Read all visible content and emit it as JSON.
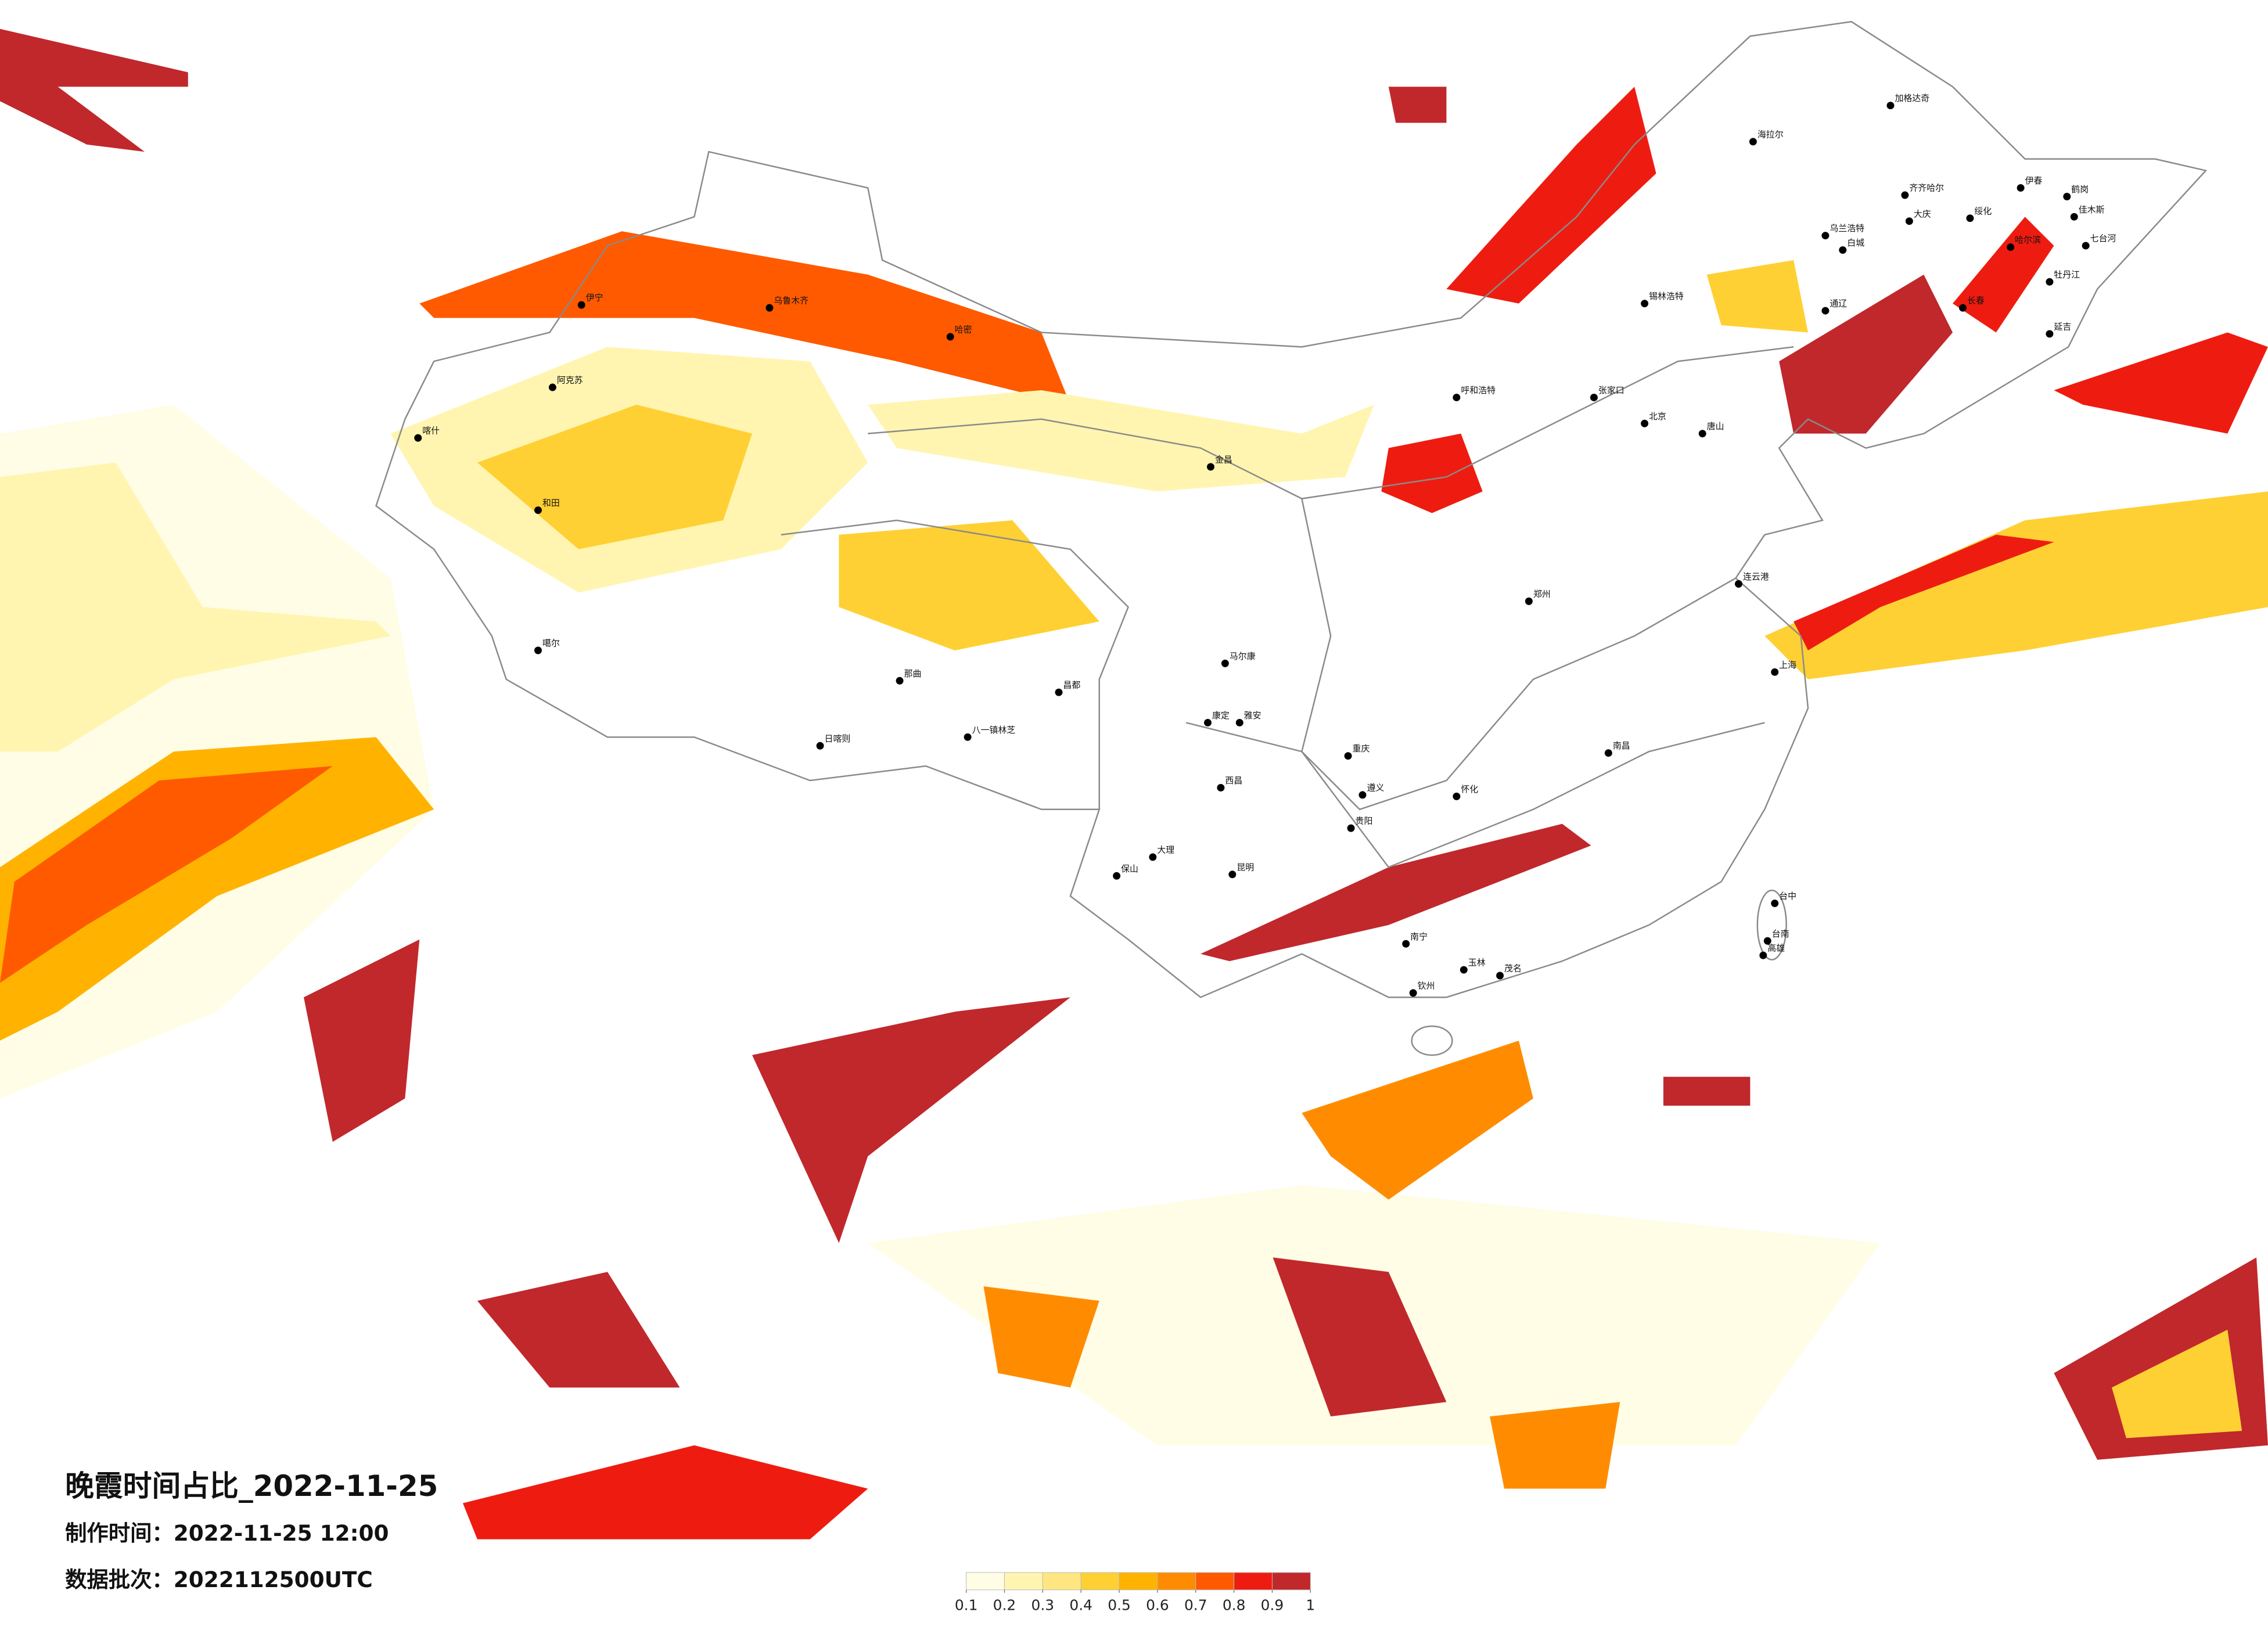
{
  "title": "晚霞时间占比_2022-11-25",
  "production_time": {
    "label": "制作时间：",
    "value": "2022-11-25 12:00"
  },
  "data_batch": {
    "label": "数据批次：",
    "value": "2022112500UTC"
  },
  "legend": {
    "colors": [
      "#fffde6",
      "#fff5b0",
      "#ffe680",
      "#ffd033",
      "#ffb300",
      "#ff8c00",
      "#ff5a00",
      "#ee1c10",
      "#c0282c"
    ],
    "ticks": [
      0.1,
      0.2,
      0.3,
      0.4,
      0.5,
      0.6,
      0.7,
      0.8,
      0.9,
      1
    ]
  },
  "cities": [
    "哈密",
    "乌鲁木齐",
    "伊宁",
    "阿克苏",
    "喀什",
    "和田",
    "噶尔",
    "那曲",
    "日喀则",
    "八一镇林芝",
    "昌都",
    "金昌",
    "呼和浩特",
    "张家口",
    "北京",
    "唐山",
    "郑州",
    "连云港",
    "上海",
    "台中",
    "台南",
    "高雄",
    "南宁",
    "钦州",
    "玉林",
    "茂名",
    "昆明",
    "大理",
    "保山",
    "西昌",
    "康定",
    "马尔康",
    "雅安",
    "重庆",
    "遵义",
    "贵阳",
    "怀化",
    "南昌",
    "哈尔滨",
    "齐齐哈尔",
    "海拉尔",
    "加格达奇",
    "伊春",
    "鹤岗",
    "佳木斯",
    "牡丹江",
    "七台河",
    "绥化",
    "大庆",
    "锡林浩特",
    "长春",
    "通辽",
    "延吉",
    "乌兰浩特",
    "白城"
  ]
}
